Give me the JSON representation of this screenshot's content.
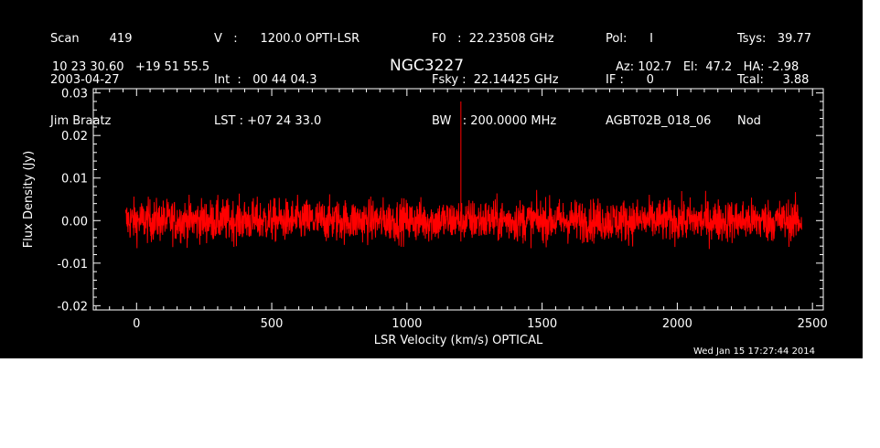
{
  "header": {
    "col1": [
      "Scan        419",
      "2003-04-27",
      "Jim Braatz"
    ],
    "col2": [
      "V   :      1200.0 OPTI-LSR",
      "Int  :   00 44 04.3",
      "LST : +07 24 33.0"
    ],
    "col3": [
      "F0   :  22.23508 GHz",
      "Fsky :  22.14425 GHz",
      "BW   : 200.0000 MHz"
    ],
    "col4": [
      "Pol:      I",
      "IF :      0",
      "AGBT02B_018_06"
    ],
    "col5": [
      "Tsys:   39.77",
      "Tcal:     3.88",
      "Nod"
    ],
    "coords": "10 23 30.60   +19 51 55.5",
    "azelha": "Az: 102.7   El:  47.2   HA: -2.98",
    "source": "NGC3227",
    "timestamp": "Wed Jan 15 17:27:44 2014"
  },
  "chart_data": {
    "type": "line",
    "title": "NGC3227",
    "xlabel": "LSR Velocity (km/s) OPTICAL",
    "ylabel": "Flux Density (Jy)",
    "xlim": [
      -160,
      2540
    ],
    "ylim": [
      -0.021,
      0.031
    ],
    "xticks": [
      "0",
      "500",
      "1000",
      "1500",
      "2000",
      "2500"
    ],
    "xtick_values": [
      0,
      500,
      1000,
      1500,
      2000,
      2500
    ],
    "yticks": [
      "-0.02",
      "-0.01",
      "0.00",
      "0.01",
      "0.02",
      "0.03"
    ],
    "ytick_values": [
      -0.02,
      -0.01,
      0.0,
      0.01,
      0.02,
      0.03
    ],
    "series": [
      {
        "color": "#ff0000",
        "x_range": [
          -40,
          2460
        ],
        "noise_rms": 0.0025,
        "baseline": 0.0,
        "peak": {
          "x": 1200,
          "y": 0.028
        }
      }
    ],
    "grid": false
  }
}
